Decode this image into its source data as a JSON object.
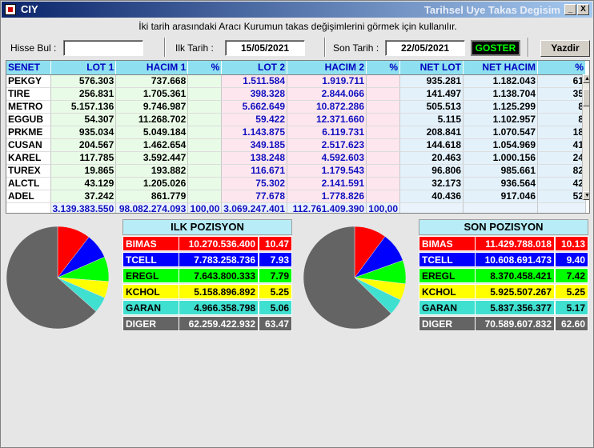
{
  "window": {
    "title": "CIY",
    "subtitle": "Tarihsel Uye Takas Degisim",
    "minimize_label": "_",
    "close_label": "X"
  },
  "instruction": "İki tarih arasındaki  Aracı Kurumun takas değişimlerini görmek için kullanılır.",
  "controls": {
    "hisse_label": "Hisse Bul :",
    "hisse_value": "",
    "ilk_label": "Ilk Tarih :",
    "ilk_value": "15/05/2021",
    "son_label": "Son Tarih :",
    "son_value": "22/05/2021",
    "goster_label": "GOSTER",
    "yazdir_label": "Yazdir"
  },
  "table": {
    "headers": [
      "SENET",
      "LOT 1",
      "HACIM 1",
      "%",
      "LOT 2",
      "HACIM 2",
      "%",
      "NET LOT",
      "NET HACIM",
      "%"
    ],
    "rows": [
      [
        "PEKGY",
        "576.303",
        "737.668",
        "",
        "1.511.584",
        "1.919.711",
        "",
        "935.281",
        "1.182.043",
        "61"
      ],
      [
        "TIRE",
        "256.831",
        "1.705.361",
        "",
        "398.328",
        "2.844.066",
        "",
        "141.497",
        "1.138.704",
        "35"
      ],
      [
        "METRO",
        "5.157.136",
        "9.746.987",
        "",
        "5.662.649",
        "10.872.286",
        "",
        "505.513",
        "1.125.299",
        "8"
      ],
      [
        "EGGUB",
        "54.307",
        "11.268.702",
        "",
        "59.422",
        "12.371.660",
        "",
        "5.115",
        "1.102.957",
        "8"
      ],
      [
        "PRKME",
        "935.034",
        "5.049.184",
        "",
        "1.143.875",
        "6.119.731",
        "",
        "208.841",
        "1.070.547",
        "18"
      ],
      [
        "CUSAN",
        "204.567",
        "1.462.654",
        "",
        "349.185",
        "2.517.623",
        "",
        "144.618",
        "1.054.969",
        "41"
      ],
      [
        "KAREL",
        "117.785",
        "3.592.447",
        "",
        "138.248",
        "4.592.603",
        "",
        "20.463",
        "1.000.156",
        "24"
      ],
      [
        "TUREX",
        "19.865",
        "193.882",
        "",
        "116.671",
        "1.179.543",
        "",
        "96.806",
        "985.661",
        "82"
      ],
      [
        "ALCTL",
        "43.129",
        "1.205.026",
        "",
        "75.302",
        "2.141.591",
        "",
        "32.173",
        "936.564",
        "42"
      ],
      [
        "ADEL",
        "37.242",
        "861.779",
        "",
        "77.678",
        "1.778.826",
        "",
        "40.436",
        "917.046",
        "52"
      ]
    ],
    "totals": [
      "",
      "3.139.383.550",
      "98.082.274.093",
      "100,00",
      "3.069.247.401",
      "112.761.409.390",
      "100,00",
      "",
      "",
      ""
    ]
  },
  "ilk_pozisyon": {
    "title": "ILK POZISYON",
    "rows": [
      {
        "name": "BIMAS",
        "value": "10.270.536.400",
        "pct": "10.47",
        "color": "#ff0000",
        "text": "#ffffff"
      },
      {
        "name": "TCELL",
        "value": "7.783.258.736",
        "pct": "7.93",
        "color": "#0000ff",
        "text": "#ffffff"
      },
      {
        "name": "EREGL",
        "value": "7.643.800.333",
        "pct": "7.79",
        "color": "#00ff00",
        "text": "#000000"
      },
      {
        "name": "KCHOL",
        "value": "5.158.896.892",
        "pct": "5.25",
        "color": "#ffff00",
        "text": "#000000"
      },
      {
        "name": "GARAN",
        "value": "4.966.358.798",
        "pct": "5.06",
        "color": "#40e0d0",
        "text": "#000000"
      },
      {
        "name": "DIGER",
        "value": "62.259.422.932",
        "pct": "63.47",
        "color": "#646464",
        "text": "#ffffff"
      }
    ]
  },
  "son_pozisyon": {
    "title": "SON POZISYON",
    "rows": [
      {
        "name": "BIMAS",
        "value": "11.429.788.018",
        "pct": "10.13",
        "color": "#ff0000",
        "text": "#ffffff"
      },
      {
        "name": "TCELL",
        "value": "10.608.691.473",
        "pct": "9.40",
        "color": "#0000ff",
        "text": "#ffffff"
      },
      {
        "name": "EREGL",
        "value": "8.370.458.421",
        "pct": "7.42",
        "color": "#00ff00",
        "text": "#000000"
      },
      {
        "name": "KCHOL",
        "value": "5.925.507.267",
        "pct": "5.25",
        "color": "#ffff00",
        "text": "#000000"
      },
      {
        "name": "GARAN",
        "value": "5.837.356.377",
        "pct": "5.17",
        "color": "#40e0d0",
        "text": "#000000"
      },
      {
        "name": "DIGER",
        "value": "70.589.607.832",
        "pct": "62.60",
        "color": "#646464",
        "text": "#ffffff"
      }
    ]
  }
}
